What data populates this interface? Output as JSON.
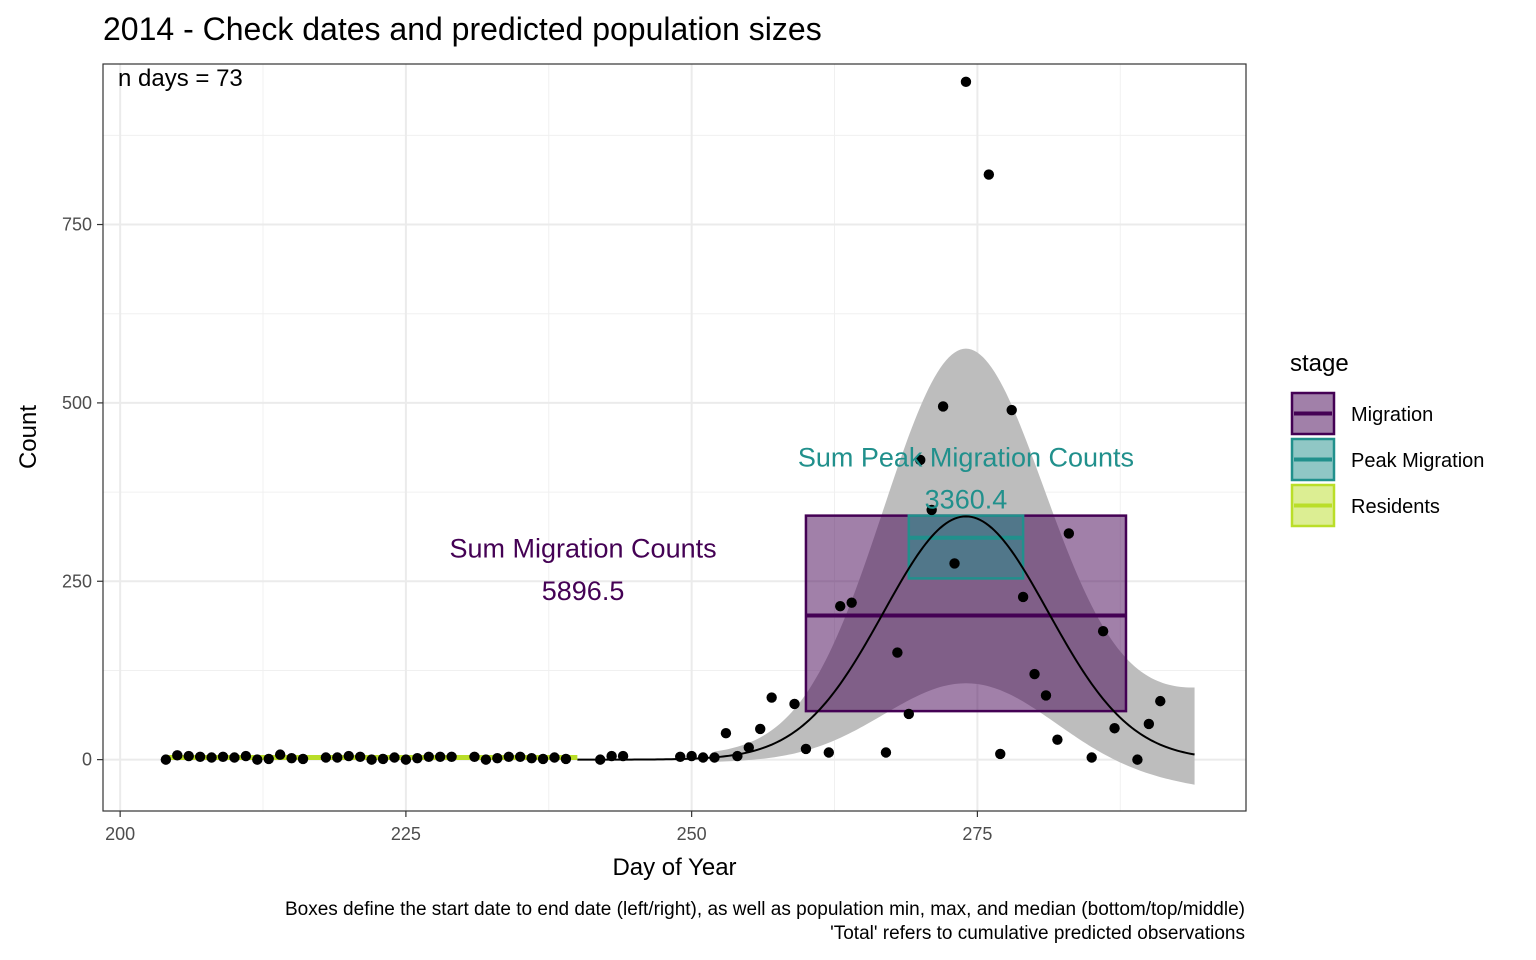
{
  "chart_data": {
    "type": "scatter",
    "title": "2014 - Check dates and predicted population sizes",
    "xlabel": "Day of Year",
    "ylabel": "Count",
    "xlim": [
      198.5,
      298.5
    ],
    "ylim": [
      -72,
      975
    ],
    "x_ticks": [
      200,
      225,
      250,
      275
    ],
    "y_ticks": [
      0,
      250,
      500,
      750
    ],
    "x_tick_labels": [
      "200",
      "225",
      "250",
      "275"
    ],
    "y_tick_labels": [
      "0",
      "250",
      "500",
      "750"
    ],
    "grid": true,
    "legend": {
      "title": "stage",
      "position": "right",
      "items": [
        {
          "label": "Migration",
          "color": "#440154"
        },
        {
          "label": "Peak Migration",
          "color": "#21908C"
        },
        {
          "label": "Residents",
          "color": "#BADE28"
        }
      ]
    },
    "observed_counts": {
      "x": [
        204,
        205,
        206,
        207,
        208,
        209,
        210,
        211,
        212,
        213,
        214,
        215,
        216,
        218,
        219,
        220,
        221,
        222,
        223,
        224,
        225,
        226,
        227,
        228,
        229,
        231,
        232,
        233,
        234,
        235,
        236,
        237,
        238,
        239,
        242,
        243,
        244,
        249,
        250,
        251,
        252,
        253,
        254,
        255,
        256,
        257,
        259,
        260,
        262,
        263,
        264,
        267,
        268,
        269,
        270,
        271,
        272,
        273,
        274,
        276,
        277,
        278,
        279,
        280,
        281,
        282,
        283,
        285,
        286,
        287,
        289,
        290,
        291
      ],
      "y": [
        0,
        6,
        5,
        4,
        3,
        4,
        3,
        5,
        0,
        1,
        7,
        2,
        1,
        3,
        3,
        5,
        4,
        0,
        1,
        3,
        0,
        2,
        4,
        4,
        4,
        4,
        0,
        2,
        4,
        4,
        2,
        1,
        3,
        1,
        0,
        5,
        5,
        4,
        5,
        3,
        3,
        37,
        5,
        17,
        43,
        87,
        78,
        15,
        10,
        215,
        220,
        10,
        150,
        64,
        420,
        350,
        495,
        275,
        950,
        820,
        8,
        490,
        228,
        120,
        90,
        28,
        317,
        3,
        180,
        44,
        0,
        50,
        82
      ]
    },
    "fitted_curve": {
      "peak_x": 274,
      "peak_y": 341,
      "baseline_y": 0,
      "x_range": [
        240,
        294
      ],
      "ci_peak_upper": 576,
      "ci_peak_lower": 107,
      "ci_end_upper": 92,
      "ci_end_lower": -27
    },
    "stage_boxes": [
      {
        "stage": "Migration",
        "start": 260,
        "end": 288,
        "min": 68,
        "max": 342,
        "median": 202
      },
      {
        "stage": "Peak Migration",
        "start": 269,
        "end": 279,
        "min": 254,
        "max": 342,
        "median": 311
      }
    ],
    "residents_line": {
      "start": 204,
      "end": 240,
      "y": 3
    },
    "annotations": {
      "n_days": "n days = 73",
      "migration_label": "Sum Migration Counts",
      "migration_value": "5896.5",
      "peak_label": "Sum Peak Migration Counts",
      "peak_value": "3360.4"
    },
    "caption": [
      "Boxes define the start date to end date (left/right), as well as population min, max, and median (bottom/top/middle)",
      "'Total' refers to cumulative predicted observations"
    ]
  }
}
